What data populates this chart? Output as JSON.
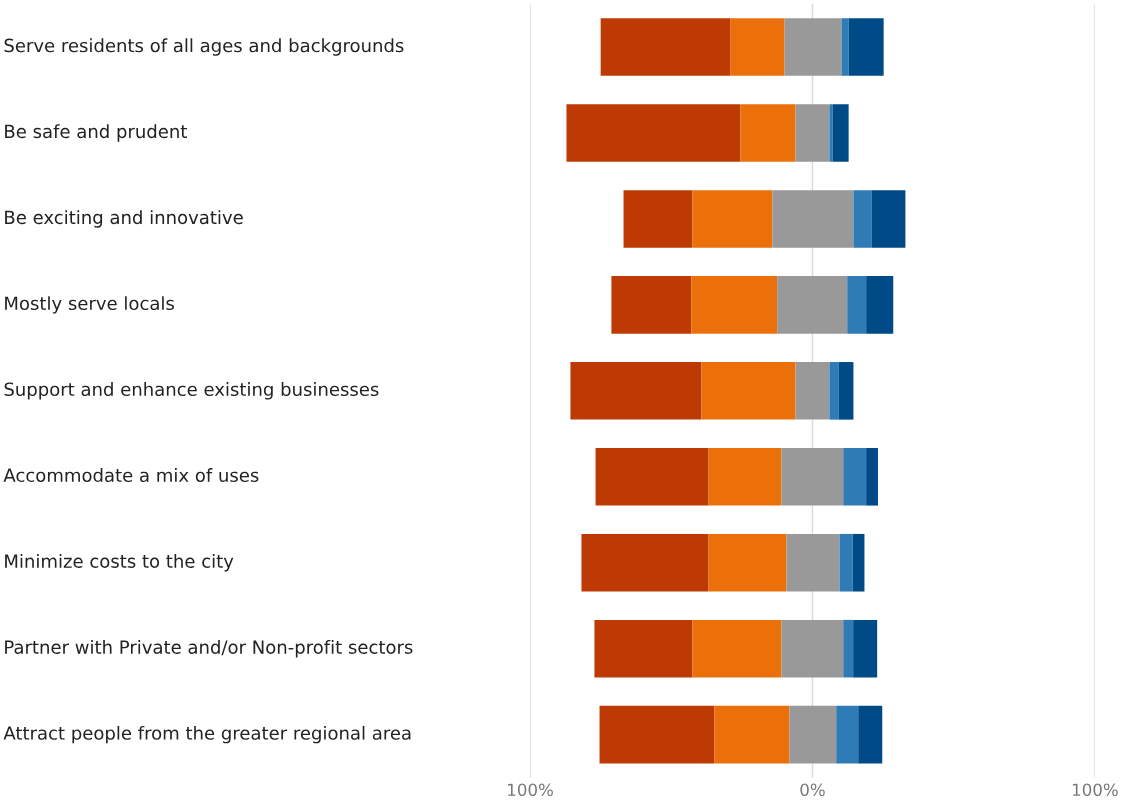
{
  "chart_data": {
    "type": "bar",
    "orientation": "horizontal",
    "categories": [
      "Serve residents of all ages and backgrounds",
      "Be safe and prudent",
      "Be exciting and innovative",
      "Mostly serve locals",
      "Support and enhance existing businesses",
      "Accommodate a mix of uses",
      "Minimize costs to the city",
      "Partner with Private and/or Non-profit sectors",
      "Attract people from the greater regional area"
    ],
    "series": [
      {
        "color": "#bd3a04",
        "base": [
          -75.0,
          -87.1,
          -66.9,
          -71.2,
          -85.7,
          -76.8,
          -81.8,
          -77.2,
          -75.4
        ],
        "values": [
          46.0,
          61.6,
          24.4,
          28.3,
          46.4,
          40.0,
          45.0,
          34.7,
          40.7
        ]
      },
      {
        "color": "#eb700a",
        "base": [
          -29.0,
          -25.5,
          -42.5,
          -42.9,
          -39.3,
          -36.8,
          -36.8,
          -42.5,
          -34.7
        ],
        "values": [
          19.1,
          19.5,
          28.3,
          30.4,
          33.3,
          25.8,
          27.6,
          31.5,
          26.5
        ]
      },
      {
        "color": "#999999",
        "base": [
          -9.9,
          -6.0,
          -14.2,
          -12.5,
          -6.0,
          -11.0,
          -9.2,
          -11.0,
          -8.2
        ],
        "values": [
          20.2,
          12.0,
          28.7,
          24.8,
          12.0,
          21.9,
          18.8,
          21.9,
          16.6
        ]
      },
      {
        "color": "#2e7bb6",
        "base": [
          10.3,
          6.0,
          14.5,
          12.3,
          6.0,
          10.9,
          9.6,
          10.9,
          8.4
        ],
        "values": [
          2.5,
          1.1,
          6.4,
          6.7,
          3.2,
          8.1,
          4.6,
          3.5,
          7.8
        ]
      },
      {
        "color": "#004b87",
        "base": [
          12.8,
          7.1,
          20.9,
          19.0,
          9.2,
          19.0,
          14.2,
          14.4,
          16.2
        ],
        "values": [
          12.4,
          5.7,
          12.0,
          9.6,
          5.3,
          4.2,
          4.2,
          8.5,
          8.5
        ]
      }
    ],
    "xlim": [
      -100,
      100
    ],
    "xticks": [
      {
        "value": -100,
        "label": "100%"
      },
      {
        "value": 0,
        "label": "0%"
      },
      {
        "value": 100,
        "label": "100%"
      }
    ],
    "grid": "x"
  }
}
